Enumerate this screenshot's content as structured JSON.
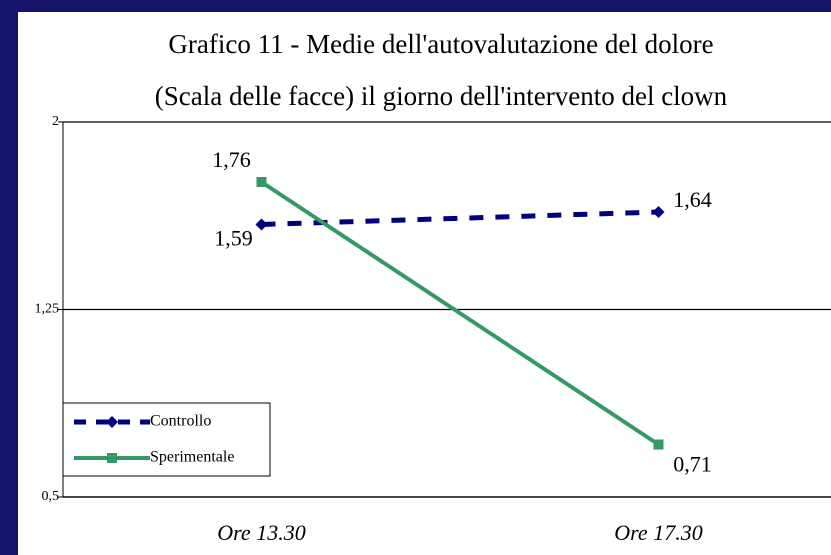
{
  "chart_data": {
    "type": "line",
    "title": [
      "Grafico 11 - Medie dell'autovalutazione del dolore",
      "(Scala delle facce) il giorno dell'intervento del clown"
    ],
    "categories": [
      "Ore 13.30",
      "Ore 17.30"
    ],
    "series": [
      {
        "name": "Controllo",
        "color": "#000080",
        "dash": true,
        "marker": "diamond",
        "values": [
          1.59,
          1.64
        ],
        "value_labels": [
          "1,59",
          "1,64"
        ]
      },
      {
        "name": "Sperimentale",
        "color": "#339966",
        "dash": false,
        "marker": "square",
        "values": [
          1.76,
          0.71
        ],
        "value_labels": [
          "1,76",
          "0,71"
        ]
      }
    ],
    "ylim": [
      0.5,
      2
    ],
    "yticks": [
      {
        "value": 0.5,
        "label": "0,5"
      },
      {
        "value": 1.25,
        "label": "1,25"
      },
      2
    ],
    "grid": true,
    "legend": "lower left"
  }
}
